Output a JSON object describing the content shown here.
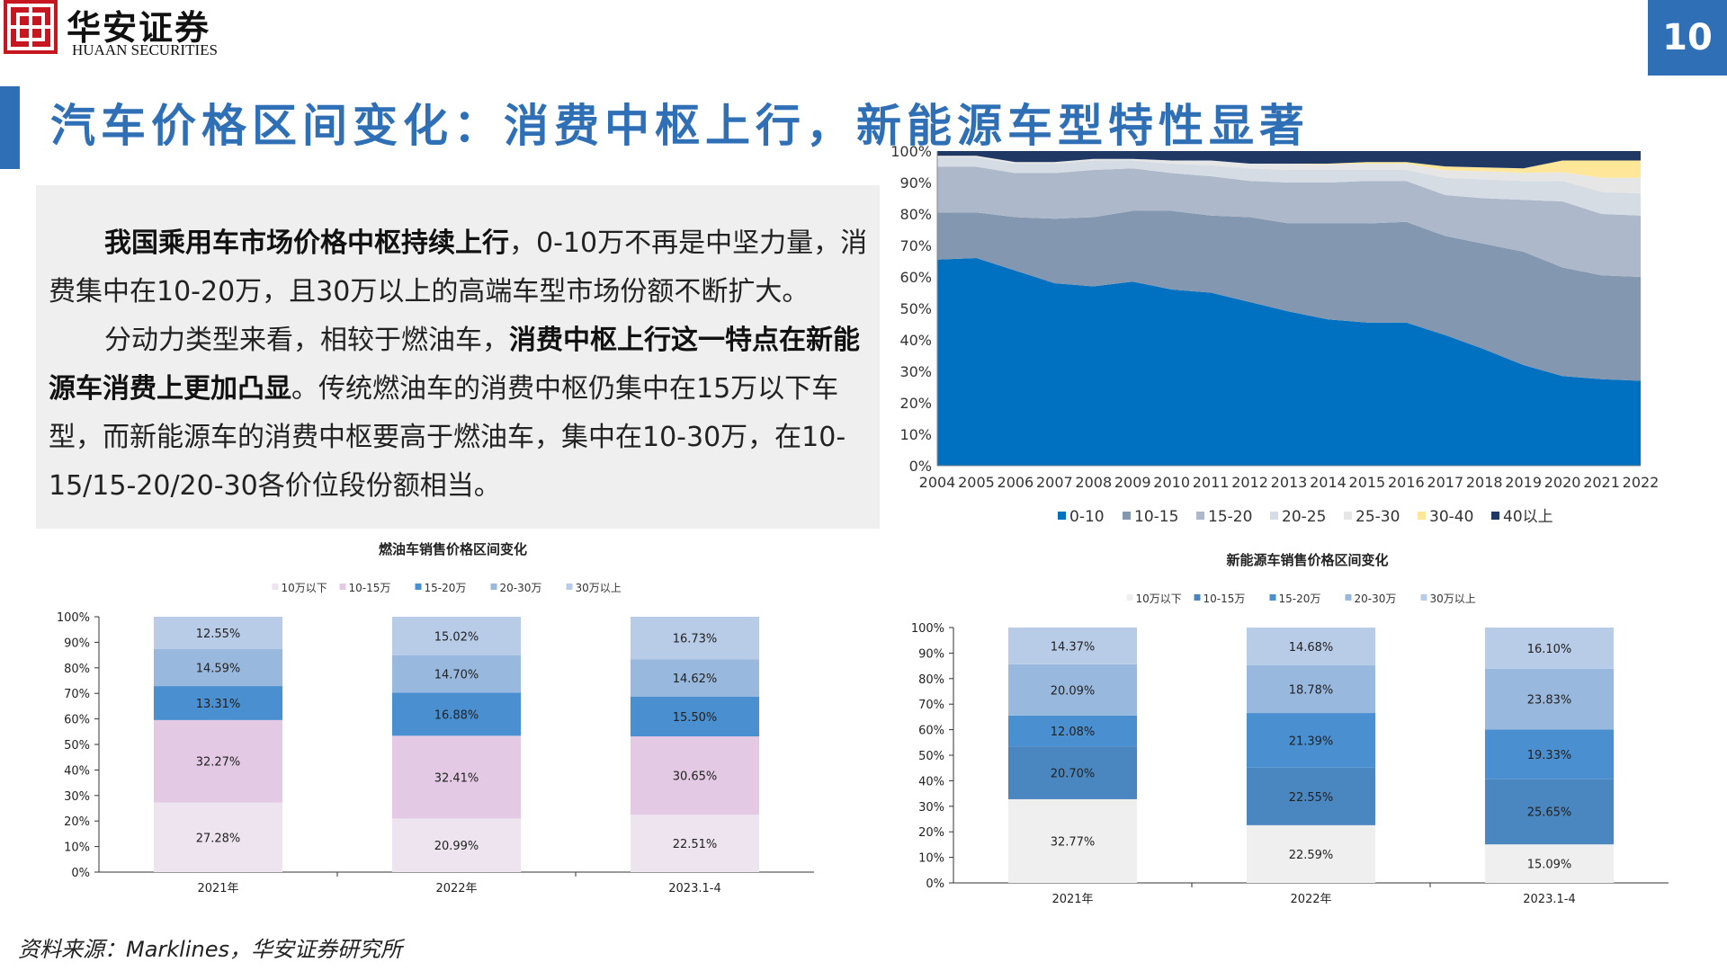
{
  "brand": {
    "name_cn": "华安证券",
    "name_en": "HUAAN SECURITIES"
  },
  "page_number": "10",
  "title": "汽车价格区间变化：消费中枢上行，新能源车型特性显著",
  "body": {
    "p1_bold": "我国乘用车市场价格中枢持续上行",
    "p1_rest": "，0-10万不再是中坚力量，消费集中在10-20万，且30万以上的高端车型市场份额不断扩大。",
    "p2_pre": "分动力类型来看，相较于燃油车，",
    "p2_bold": "消费中枢上行这一特点在新能源车消费上更加凸显",
    "p2_rest": "。传统燃油车的消费中枢仍集中在15万以下车型，而新能源车的消费中枢要高于燃油车，集中在10-30万，在10-15/15-20/20-30各价位段份额相当。"
  },
  "source": "资料来源：Marklines，华安证券研究所",
  "colors": {
    "accent": "#2f6fb6",
    "logo_red": "#c6161f",
    "area": [
      "#0070c0",
      "#8497b0",
      "#adb9ca",
      "#d6dce4",
      "#e7e6e6",
      "#ffe699",
      "#1f3864"
    ],
    "fuel": [
      "#ede4f0",
      "#e3c9e3",
      "#4a8fd0",
      "#99b8de",
      "#b8cce8"
    ],
    "nev": [
      "#efefef",
      "#4a86bf",
      "#4a8fd0",
      "#99b8de",
      "#b8cce8"
    ]
  },
  "chart_data": [
    {
      "type": "area",
      "stacked": true,
      "x": [
        "2004",
        "2005",
        "2006",
        "2007",
        "2008",
        "2009",
        "2010",
        "2011",
        "2012",
        "2013",
        "2014",
        "2015",
        "2016",
        "2017",
        "2018",
        "2019",
        "2020",
        "2021",
        "2022"
      ],
      "ylim": [
        0,
        100
      ],
      "yticks": [
        "0%",
        "10%",
        "20%",
        "30%",
        "40%",
        "50%",
        "60%",
        "70%",
        "80%",
        "90%",
        "100%"
      ],
      "legend_position": "bottom",
      "series": [
        {
          "name": "0-10",
          "values": [
            65.5,
            66,
            62,
            58,
            57,
            58.5,
            56,
            55,
            52,
            49,
            46.5,
            45.5,
            45.5,
            41.5,
            37,
            32,
            28.5,
            27.5,
            27
          ]
        },
        {
          "name": "10-15",
          "values": [
            15,
            14.5,
            17,
            20.5,
            22,
            22.5,
            25,
            24.5,
            27,
            28,
            30.5,
            31.5,
            32,
            31.5,
            33.5,
            36,
            34.5,
            33,
            33
          ]
        },
        {
          "name": "15-20",
          "values": [
            14.5,
            14.5,
            14,
            14.5,
            15,
            13.5,
            12,
            12.5,
            11.5,
            13,
            13,
            13.5,
            13,
            13,
            14.5,
            16.5,
            21,
            19.5,
            19.5
          ]
        },
        {
          "name": "20-25",
          "values": [
            3,
            3,
            3,
            3,
            3,
            2.5,
            3,
            3.5,
            4,
            4,
            4,
            3.5,
            3.5,
            5.5,
            6,
            6,
            6.5,
            7,
            7
          ]
        },
        {
          "name": "25-30",
          "values": [
            0.5,
            0.5,
            0.5,
            0.5,
            0.5,
            0.5,
            1,
            1.5,
            1.5,
            2,
            1.8,
            2,
            2,
            2.4,
            2.6,
            2.6,
            2.8,
            4.5,
            5
          ]
        },
        {
          "name": "30-40",
          "values": [
            0,
            0,
            0,
            0,
            0,
            0,
            0,
            0,
            0,
            0,
            0.2,
            0.5,
            0.5,
            1.2,
            1.2,
            1.4,
            3.7,
            5.5,
            5.5
          ]
        },
        {
          "name": "40以上",
          "values": [
            1.5,
            1.5,
            3.5,
            3.5,
            2.5,
            2.5,
            3,
            3,
            4,
            4,
            4,
            3.5,
            3.5,
            4.9,
            5.2,
            5.5,
            3,
            3,
            3
          ]
        }
      ]
    },
    {
      "type": "bar",
      "stacked": true,
      "title": "燃油车销售价格区间变化",
      "categories": [
        "2021年",
        "2022年",
        "2023.1-4"
      ],
      "ylim": [
        0,
        100
      ],
      "yticks": [
        "0%",
        "10%",
        "20%",
        "30%",
        "40%",
        "50%",
        "60%",
        "70%",
        "80%",
        "90%",
        "100%"
      ],
      "legend_position": "top",
      "series": [
        {
          "name": "10万以下",
          "values": [
            27.28,
            20.99,
            22.51
          ],
          "labels": [
            "27.28%",
            "20.99%",
            "22.51%"
          ]
        },
        {
          "name": "10-15万",
          "values": [
            32.27,
            32.41,
            30.65
          ],
          "labels": [
            "32.27%",
            "32.41%",
            "30.65%"
          ]
        },
        {
          "name": "15-20万",
          "values": [
            13.31,
            16.88,
            15.5
          ],
          "labels": [
            "13.31%",
            "16.88%",
            "15.50%"
          ]
        },
        {
          "name": "20-30万",
          "values": [
            14.59,
            14.7,
            14.62
          ],
          "labels": [
            "14.59%",
            "14.70%",
            "14.62%"
          ]
        },
        {
          "name": "30万以上",
          "values": [
            12.55,
            15.02,
            16.73
          ],
          "labels": [
            "12.55%",
            "15.02%",
            "16.73%"
          ]
        }
      ]
    },
    {
      "type": "bar",
      "stacked": true,
      "title": "新能源车销售价格区间变化",
      "categories": [
        "2021年",
        "2022年",
        "2023.1-4"
      ],
      "ylim": [
        0,
        100
      ],
      "yticks": [
        "0%",
        "10%",
        "20%",
        "30%",
        "40%",
        "50%",
        "60%",
        "70%",
        "80%",
        "90%",
        "100%"
      ],
      "legend_position": "top",
      "series": [
        {
          "name": "10万以下",
          "values": [
            32.77,
            22.59,
            15.09
          ],
          "labels": [
            "32.77%",
            "22.59%",
            "15.09%"
          ]
        },
        {
          "name": "10-15万",
          "values": [
            20.7,
            22.55,
            25.65
          ],
          "labels": [
            "20.70%",
            "22.55%",
            "25.65%"
          ]
        },
        {
          "name": "15-20万",
          "values": [
            12.08,
            21.39,
            19.33
          ],
          "labels": [
            "12.08%",
            "21.39%",
            "19.33%"
          ]
        },
        {
          "name": "20-30万",
          "values": [
            20.09,
            18.78,
            23.83
          ],
          "labels": [
            "20.09%",
            "18.78%",
            "23.83%"
          ]
        },
        {
          "name": "30万以上",
          "values": [
            14.37,
            14.68,
            16.1
          ],
          "labels": [
            "14.37%",
            "14.68%",
            "16.10%"
          ]
        }
      ]
    }
  ]
}
